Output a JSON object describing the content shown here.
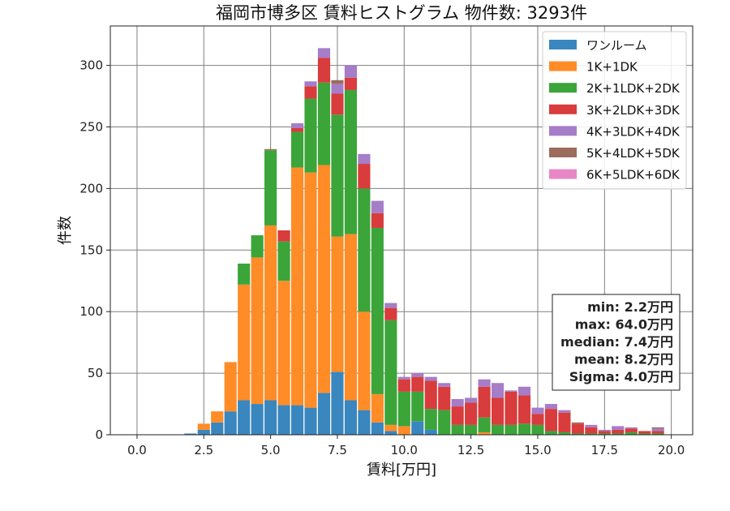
{
  "chart_data": {
    "type": "bar",
    "stacked": true,
    "title": "福岡市博多区 賃料ヒストグラム 物件数: 3293件",
    "xlabel": "賃料[万円]",
    "ylabel": "件数",
    "xlim": [
      -1.0,
      20.8
    ],
    "ylim": [
      0,
      332
    ],
    "xticks": [
      0.0,
      2.5,
      5.0,
      7.5,
      10.0,
      12.5,
      15.0,
      17.5,
      20.0
    ],
    "xtick_labels": [
      "0.0",
      "2.5",
      "5.0",
      "7.5",
      "10.0",
      "12.5",
      "15.0",
      "17.5",
      "20.0"
    ],
    "yticks": [
      0,
      50,
      100,
      150,
      200,
      250,
      300
    ],
    "ytick_labels": [
      "0",
      "50",
      "100",
      "150",
      "200",
      "250",
      "300"
    ],
    "grid": true,
    "legend_position": "top-right",
    "bin_width": 0.5,
    "x": [
      0.0,
      0.5,
      1.0,
      1.5,
      2.0,
      2.5,
      3.0,
      3.5,
      4.0,
      4.5,
      5.0,
      5.5,
      6.0,
      6.5,
      7.0,
      7.5,
      8.0,
      8.5,
      9.0,
      9.5,
      10.0,
      10.5,
      11.0,
      11.5,
      12.0,
      12.5,
      13.0,
      13.5,
      14.0,
      14.5,
      15.0,
      15.5,
      16.0,
      16.5,
      17.0,
      17.5,
      18.0,
      18.5,
      19.0,
      19.5
    ],
    "series": [
      {
        "name": "ワンルーム",
        "color": "#3a86bf",
        "values": [
          0,
          0,
          0,
          0,
          1,
          4,
          10,
          19,
          28,
          25,
          28,
          24,
          24,
          22,
          34,
          51,
          28,
          20,
          10,
          3,
          0,
          11,
          4,
          0,
          0,
          0,
          0,
          0,
          0,
          0,
          0,
          0,
          0,
          0,
          0,
          0,
          0,
          0,
          0,
          0
        ]
      },
      {
        "name": "1K+1DK",
        "color": "#ff8c27",
        "values": [
          0,
          0,
          0,
          0,
          0,
          5,
          9,
          40,
          94,
          119,
          142,
          101,
          193,
          191,
          185,
          110,
          135,
          80,
          23,
          5,
          7,
          0,
          0,
          0,
          0,
          0,
          2,
          0,
          0,
          0,
          0,
          0,
          0,
          0,
          0,
          0,
          0,
          0,
          0,
          0
        ]
      },
      {
        "name": "2K+1LDK+2DK",
        "color": "#3ba53a",
        "values": [
          0,
          0,
          0,
          0,
          0,
          0,
          0,
          0,
          17,
          18,
          61,
          32,
          29,
          60,
          67,
          99,
          117,
          100,
          135,
          85,
          28,
          24,
          17,
          20,
          8,
          8,
          12,
          8,
          8,
          9,
          8,
          3,
          2,
          1,
          1,
          1,
          1,
          2,
          1,
          1
        ]
      },
      {
        "name": "3K+2LDK+3DK",
        "color": "#d83c3c",
        "values": [
          0,
          0,
          0,
          0,
          0,
          0,
          0,
          0,
          0,
          0,
          0,
          9,
          3,
          10,
          20,
          17,
          10,
          20,
          12,
          10,
          10,
          12,
          23,
          19,
          15,
          18,
          25,
          22,
          27,
          23,
          9,
          18,
          16,
          8,
          5,
          2,
          3,
          3,
          2,
          2
        ]
      },
      {
        "name": "4K+3LDK+4DK",
        "color": "#a67dc8",
        "values": [
          0,
          0,
          0,
          0,
          0,
          0,
          0,
          0,
          0,
          0,
          0,
          0,
          4,
          4,
          8,
          8,
          10,
          8,
          10,
          4,
          2,
          3,
          3,
          3,
          6,
          4,
          6,
          12,
          1,
          7,
          5,
          4,
          2,
          0,
          2,
          1,
          3,
          1,
          0,
          2
        ]
      },
      {
        "name": "5K+4LDK+5DK",
        "color": "#9c6c5c",
        "values": [
          0,
          0,
          0,
          0,
          0,
          0,
          0,
          0,
          0,
          0,
          1,
          0,
          0,
          0,
          0,
          3,
          0,
          0,
          0,
          0,
          0,
          0,
          0,
          0,
          0,
          0,
          0,
          0,
          0,
          0,
          0,
          0,
          0,
          1,
          0,
          0,
          0,
          0,
          0,
          1
        ]
      },
      {
        "name": "6K+5LDK+6DK",
        "color": "#e887c6",
        "values": [
          0,
          0,
          0,
          0,
          0,
          0,
          0,
          0,
          0,
          0,
          0,
          0,
          0,
          0,
          0,
          0,
          0,
          0,
          0,
          0,
          0,
          0,
          0,
          0,
          0,
          0,
          0,
          0,
          0,
          0,
          0,
          0,
          0,
          0,
          0,
          0,
          0,
          0,
          0,
          0
        ]
      }
    ],
    "stats": [
      "min: 2.2万円",
      "max: 64.0万円",
      "median: 7.4万円",
      "mean: 8.2万円",
      "Sigma: 4.0万円"
    ]
  }
}
